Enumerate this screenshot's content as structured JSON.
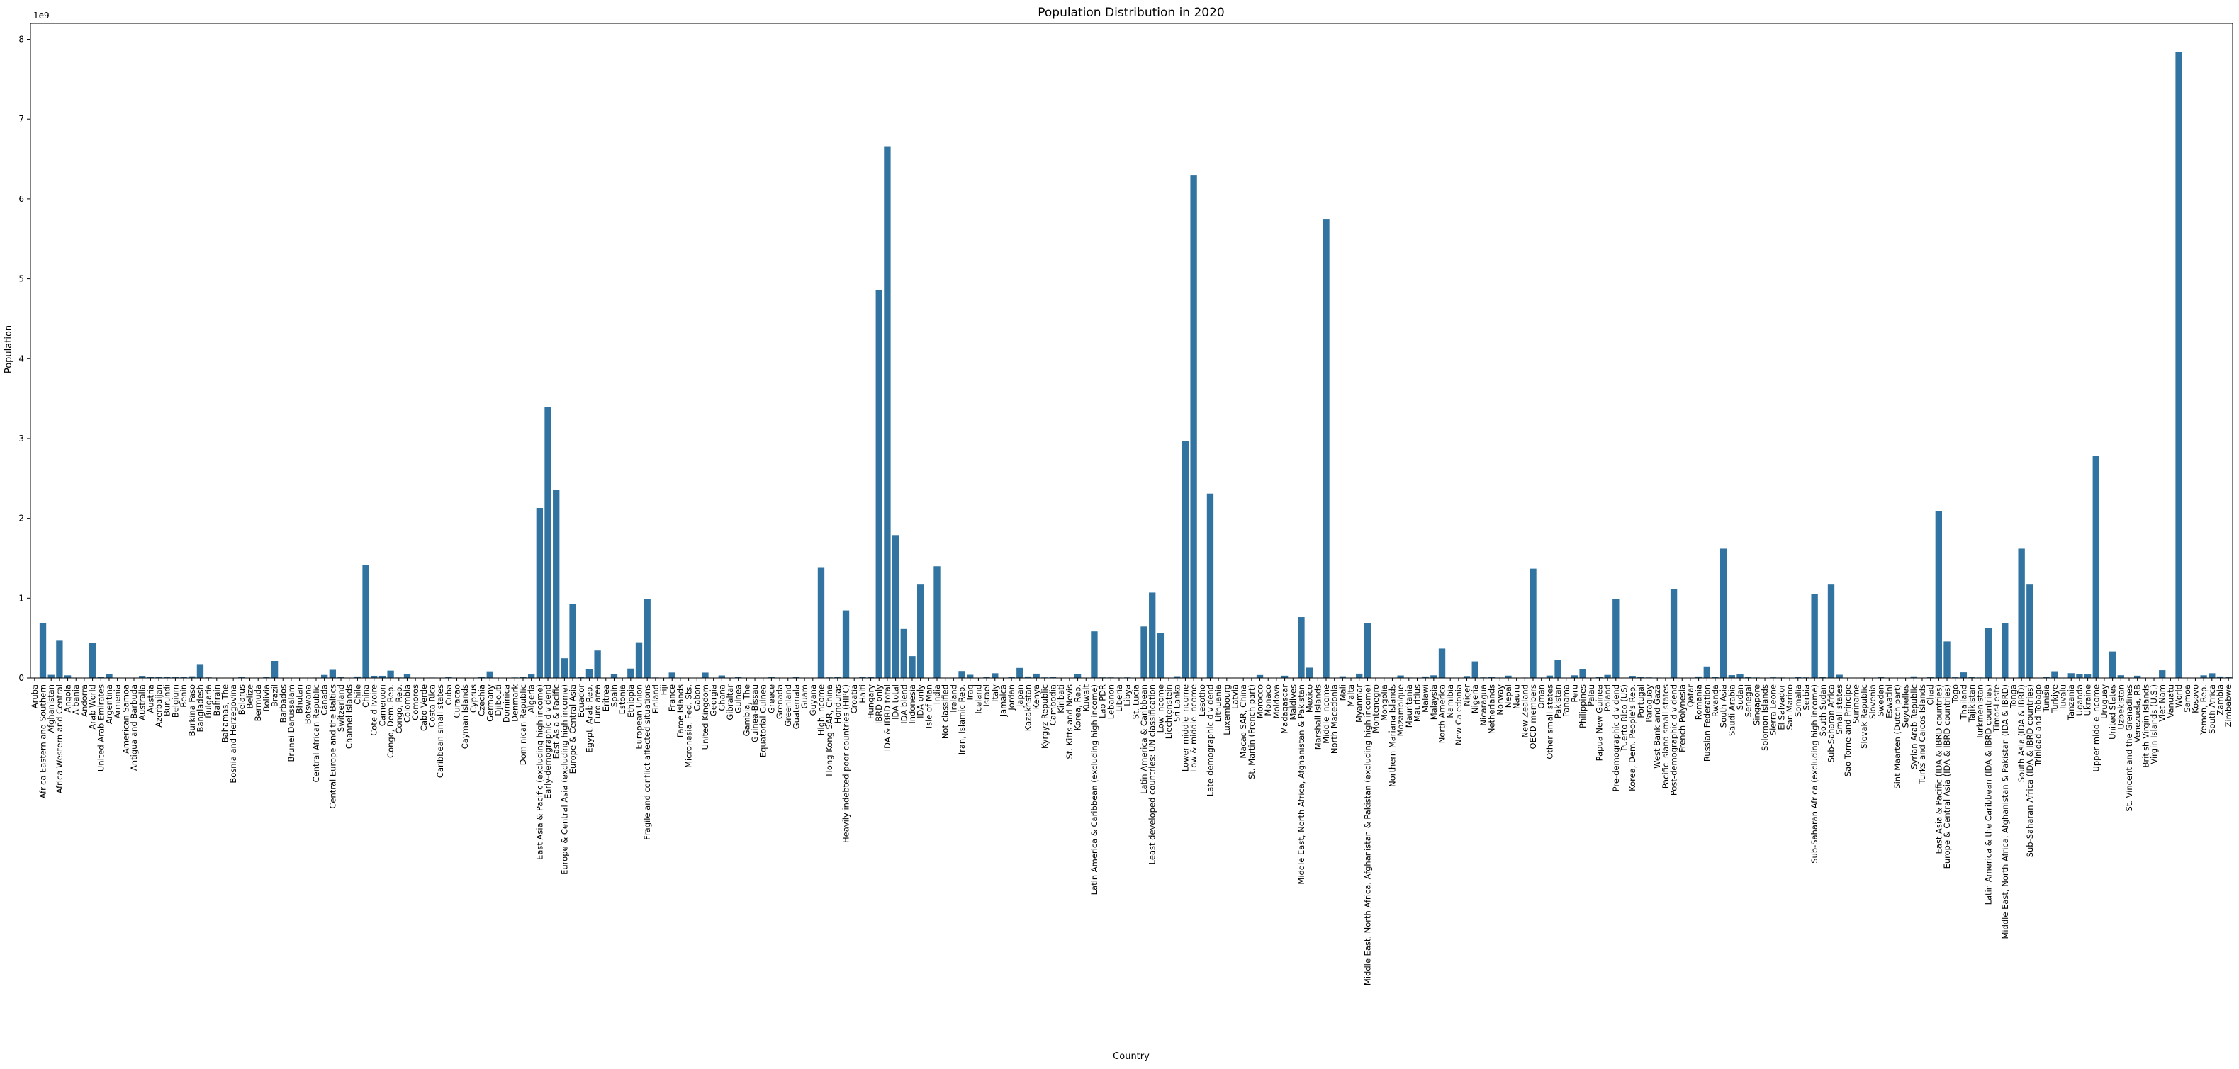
{
  "chart_data": {
    "type": "bar",
    "title": "Population Distribution in 2020",
    "xlabel": "Country",
    "ylabel": "Population",
    "y_scale_label": "1e9",
    "ylim": [
      0,
      8.2
    ],
    "y_ticks": [
      0,
      1,
      2,
      3,
      4,
      5,
      6,
      7,
      8
    ],
    "grid": false,
    "legend": "none",
    "bar_color": "#3274a1",
    "categories": [
      "Aruba",
      "Africa Eastern and Southern",
      "Afghanistan",
      "Africa Western and Central",
      "Angola",
      "Albania",
      "Andorra",
      "Arab World",
      "United Arab Emirates",
      "Argentina",
      "Armenia",
      "American Samoa",
      "Antigua and Barbuda",
      "Australia",
      "Austria",
      "Azerbaijan",
      "Burundi",
      "Belgium",
      "Benin",
      "Burkina Faso",
      "Bangladesh",
      "Bulgaria",
      "Bahrain",
      "Bahamas, The",
      "Bosnia and Herzegovina",
      "Belarus",
      "Belize",
      "Bermuda",
      "Bolivia",
      "Brazil",
      "Barbados",
      "Brunei Darussalam",
      "Bhutan",
      "Botswana",
      "Central African Republic",
      "Canada",
      "Central Europe and the Baltics",
      "Switzerland",
      "Channel Islands",
      "Chile",
      "China",
      "Cote d'Ivoire",
      "Cameroon",
      "Congo, Dem. Rep.",
      "Congo, Rep.",
      "Colombia",
      "Comoros",
      "Cabo Verde",
      "Costa Rica",
      "Caribbean small states",
      "Cuba",
      "Curacao",
      "Cayman Islands",
      "Cyprus",
      "Czechia",
      "Germany",
      "Djibouti",
      "Dominica",
      "Denmark",
      "Dominican Republic",
      "Algeria",
      "East Asia & Pacific (excluding high income)",
      "Early-demographic dividend",
      "East Asia & Pacific",
      "Europe & Central Asia (excluding high income)",
      "Europe & Central Asia",
      "Ecuador",
      "Egypt, Arab Rep.",
      "Euro area",
      "Eritrea",
      "Spain",
      "Estonia",
      "Ethiopia",
      "European Union",
      "Fragile and conflict affected situations",
      "Finland",
      "Fiji",
      "France",
      "Faroe Islands",
      "Micronesia, Fed. Sts.",
      "Gabon",
      "United Kingdom",
      "Georgia",
      "Ghana",
      "Gibraltar",
      "Guinea",
      "Gambia, The",
      "Guinea-Bissau",
      "Equatorial Guinea",
      "Greece",
      "Grenada",
      "Greenland",
      "Guatemala",
      "Guam",
      "Guyana",
      "High income",
      "Hong Kong SAR, China",
      "Honduras",
      "Heavily indebted poor countries (HIPC)",
      "Croatia",
      "Haiti",
      "Hungary",
      "IBRD only",
      "IDA & IBRD total",
      "IDA total",
      "IDA blend",
      "Indonesia",
      "IDA only",
      "Isle of Man",
      "India",
      "Not classified",
      "Ireland",
      "Iran, Islamic Rep.",
      "Iraq",
      "Iceland",
      "Israel",
      "Italy",
      "Jamaica",
      "Jordan",
      "Japan",
      "Kazakhstan",
      "Kenya",
      "Kyrgyz Republic",
      "Cambodia",
      "Kiribati",
      "St. Kitts and Nevis",
      "Korea, Rep.",
      "Kuwait",
      "Latin America & Caribbean (excluding high income)",
      "Lao PDR",
      "Lebanon",
      "Liberia",
      "Libya",
      "St. Lucia",
      "Latin America & Caribbean",
      "Least developed countries: UN classification",
      "Low income",
      "Liechtenstein",
      "Sri Lanka",
      "Lower middle income",
      "Low & middle income",
      "Lesotho",
      "Late-demographic dividend",
      "Lithuania",
      "Luxembourg",
      "Latvia",
      "Macao SAR, China",
      "St. Martin (French part)",
      "Morocco",
      "Monaco",
      "Moldova",
      "Madagascar",
      "Maldives",
      "Middle East, North Africa, Afghanistan & Pakistan",
      "Mexico",
      "Marshall Islands",
      "Middle income",
      "North Macedonia",
      "Mali",
      "Malta",
      "Myanmar",
      "Middle East, North Africa, Afghanistan & Pakistan (excluding high income)",
      "Montenegro",
      "Mongolia",
      "Northern Mariana Islands",
      "Mozambique",
      "Mauritania",
      "Mauritius",
      "Malawi",
      "Malaysia",
      "North America",
      "Namibia",
      "New Caledonia",
      "Niger",
      "Nigeria",
      "Nicaragua",
      "Netherlands",
      "Norway",
      "Nepal",
      "Nauru",
      "New Zealand",
      "OECD members",
      "Oman",
      "Other small states",
      "Pakistan",
      "Panama",
      "Peru",
      "Philippines",
      "Palau",
      "Papua New Guinea",
      "Poland",
      "Pre-demographic dividend",
      "Puerto Rico (US)",
      "Korea, Dem. People's Rep.",
      "Portugal",
      "Paraguay",
      "West Bank and Gaza",
      "Pacific island small states",
      "Post-demographic dividend",
      "French Polynesia",
      "Qatar",
      "Romania",
      "Russian Federation",
      "Rwanda",
      "South Asia",
      "Saudi Arabia",
      "Sudan",
      "Senegal",
      "Singapore",
      "Solomon Islands",
      "Sierra Leone",
      "El Salvador",
      "San Marino",
      "Somalia",
      "Serbia",
      "Sub-Saharan Africa (excluding high income)",
      "South Sudan",
      "Sub-Saharan Africa",
      "Small states",
      "Sao Tome and Principe",
      "Suriname",
      "Slovak Republic",
      "Slovenia",
      "Sweden",
      "Eswatini",
      "Sint Maarten (Dutch part)",
      "Seychelles",
      "Syrian Arab Republic",
      "Turks and Caicos Islands",
      "Chad",
      "East Asia & Pacific (IDA & IBRD countries)",
      "Europe & Central Asia (IDA & IBRD countries)",
      "Togo",
      "Thailand",
      "Tajikistan",
      "Turkmenistan",
      "Latin America & the Caribbean (IDA & IBRD countries)",
      "Timor-Leste",
      "Middle East, North Africa, Afghanistan & Pakistan (IDA & IBRD)",
      "Tonga",
      "South Asia (IDA & IBRD)",
      "Sub-Saharan Africa (IDA & IBRD countries)",
      "Trinidad and Tobago",
      "Tunisia",
      "Turkiye",
      "Tuvalu",
      "Tanzania",
      "Uganda",
      "Ukraine",
      "Upper middle income",
      "Uruguay",
      "United States",
      "Uzbekistan",
      "St. Vincent and the Grenadines",
      "Venezuela, RB",
      "British Virgin Islands",
      "Virgin Islands (U.S.)",
      "Viet Nam",
      "Vanuatu",
      "World",
      "Samoa",
      "Kosovo",
      "Yemen, Rep.",
      "South Africa",
      "Zambia",
      "Zimbabwe"
    ],
    "values": [
      0.0001,
      0.685,
      0.039,
      0.467,
      0.033,
      0.003,
      0.0001,
      0.44,
      0.01,
      0.045,
      0.003,
      0.0001,
      0.0001,
      0.026,
      0.009,
      0.01,
      0.012,
      0.012,
      0.012,
      0.021,
      0.165,
      0.007,
      0.002,
      0.0004,
      0.003,
      0.009,
      0.0004,
      0.0001,
      0.012,
      0.213,
      0.0003,
      0.0004,
      0.0008,
      0.002,
      0.005,
      0.038,
      0.102,
      0.009,
      0.0002,
      0.019,
      1.411,
      0.027,
      0.027,
      0.092,
      0.006,
      0.051,
      0.0009,
      0.0006,
      0.005,
      0.003,
      0.011,
      0.0002,
      0.0001,
      0.001,
      0.011,
      0.083,
      0.001,
      0.0001,
      0.006,
      0.011,
      0.044,
      2.13,
      3.39,
      2.36,
      0.247,
      0.923,
      0.018,
      0.107,
      0.344,
      0.004,
      0.047,
      0.001,
      0.118,
      0.447,
      0.99,
      0.006,
      0.0009,
      0.068,
      0.0001,
      0.0001,
      0.002,
      0.067,
      0.004,
      0.031,
      0.0001,
      0.013,
      0.002,
      0.002,
      0.001,
      0.011,
      0.0001,
      0.0001,
      0.017,
      0.0002,
      0.0008,
      1.38,
      0.007,
      0.01,
      0.847,
      0.004,
      0.011,
      0.01,
      4.86,
      6.66,
      1.79,
      0.614,
      0.274,
      1.17,
      0.0001,
      1.4,
      0.0001,
      0.005,
      0.087,
      0.04,
      0.0004,
      0.009,
      0.059,
      0.003,
      0.011,
      0.126,
      0.019,
      0.054,
      0.007,
      0.017,
      0.0001,
      0.0001,
      0.052,
      0.004,
      0.584,
      0.007,
      0.007,
      0.005,
      0.007,
      0.0002,
      0.645,
      1.07,
      0.566,
      0.0001,
      0.022,
      2.97,
      6.3,
      0.002,
      2.31,
      0.003,
      0.0006,
      0.002,
      0.0007,
      0.0001,
      0.037,
      0.0001,
      0.003,
      0.028,
      0.0005,
      0.763,
      0.129,
      0.0001,
      5.75,
      0.002,
      0.021,
      0.0005,
      0.054,
      0.689,
      0.0006,
      0.003,
      0.0001,
      0.031,
      0.005,
      0.001,
      0.019,
      0.033,
      0.369,
      0.003,
      0.0003,
      0.024,
      0.208,
      0.007,
      0.017,
      0.005,
      0.029,
      0.0001,
      0.005,
      1.37,
      0.005,
      0.03,
      0.227,
      0.004,
      0.033,
      0.11,
      0.0001,
      0.009,
      0.038,
      0.993,
      0.003,
      0.026,
      0.01,
      0.007,
      0.005,
      0.003,
      1.11,
      0.0003,
      0.003,
      0.019,
      0.144,
      0.013,
      1.62,
      0.035,
      0.044,
      0.017,
      0.006,
      0.0007,
      0.008,
      0.006,
      0.0001,
      0.016,
      0.007,
      1.05,
      0.011,
      1.17,
      0.04,
      0.0002,
      0.0006,
      0.005,
      0.002,
      0.01,
      0.001,
      0.0001,
      0.0001,
      0.02,
      0.0001,
      0.016,
      2.09,
      0.458,
      0.008,
      0.07,
      0.01,
      0.006,
      0.624,
      0.001,
      0.689,
      0.0001,
      1.62,
      1.17,
      0.001,
      0.012,
      0.084,
      0.0001,
      0.06,
      0.046,
      0.044,
      2.78,
      0.003,
      0.332,
      0.034,
      0.0001,
      0.028,
      0.0001,
      0.0001,
      0.097,
      0.0003,
      7.84,
      0.0002,
      0.002,
      0.033,
      0.059,
      0.019,
      0.015
    ]
  }
}
